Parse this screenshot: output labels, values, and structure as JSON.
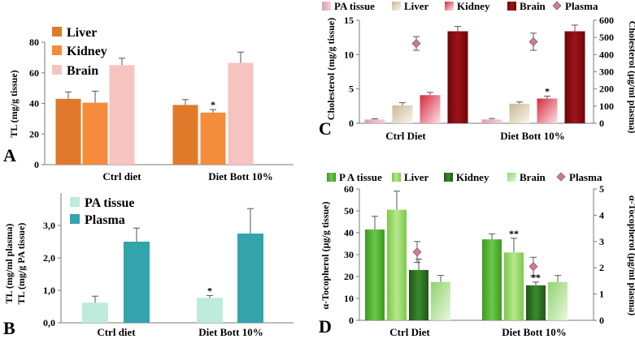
{
  "colors": {
    "liver_A": "#e07a2a",
    "kidney_A": "#f48c3c",
    "brain_A": "#f7c3c0",
    "pa_B": "#bdebdc",
    "plasma_B": "#33a3ac",
    "pa_C": "#e7b4bc",
    "liver_C": "#efe2c8",
    "kidney_C": "#e8576d",
    "brain_C": "#8a0d12",
    "plasma_C": "#c98088",
    "pa_D": "#52b231",
    "liver_D": "#8fd35a",
    "kidney_D": "#2d6d22",
    "brain_D": "#a6e08a",
    "plasma_D": "#c98088"
  },
  "chart_data": [
    {
      "panel": "A",
      "type": "bar",
      "categories": [
        "Ctrl diet",
        "Diet Bott 10%"
      ],
      "series": [
        {
          "name": "Liver",
          "values": [
            43,
            39
          ],
          "errors": [
            4.5,
            3.5
          ]
        },
        {
          "name": "Kidney",
          "values": [
            40.5,
            34
          ],
          "errors": [
            7.5,
            2
          ]
        },
        {
          "name": "Brain",
          "values": [
            65,
            66.5
          ],
          "errors": [
            4.5,
            7
          ]
        }
      ],
      "ylabel": "TL (mg/g tissue)",
      "ylim": [
        0,
        80
      ],
      "yticks": [
        "0",
        "20",
        "40",
        "60",
        "80"
      ],
      "significance": [
        {
          "category": 1,
          "series": 1,
          "label": "*"
        }
      ]
    },
    {
      "panel": "B",
      "type": "bar",
      "categories": [
        "Ctrl diet",
        "Diet Bott 10%"
      ],
      "series": [
        {
          "name": "PA tissue",
          "values": [
            0.62,
            0.77
          ],
          "errors": [
            0.2,
            0.07
          ]
        },
        {
          "name": "Plasma",
          "values": [
            2.5,
            2.75
          ],
          "errors": [
            0.42,
            0.77
          ]
        }
      ],
      "ylabel_lines": [
        "TL (mg/ml plasma)",
        "TL (mg/g  PA tissue)"
      ],
      "ylim": [
        0,
        4
      ],
      "yticks": [
        "0,0",
        "1,0",
        "2,0",
        "3,0"
      ],
      "significance": [
        {
          "category": 1,
          "series": 0,
          "label": "*"
        }
      ]
    },
    {
      "panel": "C",
      "type": "bar",
      "categories": [
        "Ctrl Diet",
        "Diet Bott 10%"
      ],
      "series": [
        {
          "name": "PA tissue",
          "values": [
            0.55,
            0.55
          ],
          "errors": [
            0.1,
            0.15
          ]
        },
        {
          "name": "Liver",
          "values": [
            2.6,
            2.85
          ],
          "errors": [
            0.4,
            0.25
          ]
        },
        {
          "name": "Kidney",
          "values": [
            4.1,
            3.6
          ],
          "errors": [
            0.4,
            0.35
          ]
        },
        {
          "name": "Brain",
          "values": [
            13.4,
            13.4
          ],
          "errors": [
            0.7,
            0.9
          ]
        }
      ],
      "secondary_series": {
        "name": "Plasma",
        "type": "scatter",
        "values": [
          465,
          475
        ],
        "errors": [
          40,
          50
        ]
      },
      "ylabel": "Cholesterol (mg/g tissue)",
      "ylim": [
        0,
        15
      ],
      "yticks": [
        "0",
        "5",
        "10",
        "15"
      ],
      "y2label": "Cholesterol (µg/ml plasma)",
      "y2lim": [
        0,
        600
      ],
      "y2ticks": [
        "0",
        "100",
        "200",
        "300",
        "400",
        "500",
        "600"
      ],
      "significance": [
        {
          "category": 1,
          "series": 2,
          "label": "*"
        }
      ]
    },
    {
      "panel": "D",
      "type": "bar",
      "categories": [
        "Ctrl Diet",
        "Diet Bott 10%"
      ],
      "series": [
        {
          "name": "P A tissue",
          "values": [
            41.5,
            37
          ],
          "errors": [
            6,
            2.5
          ]
        },
        {
          "name": "Liver",
          "values": [
            50.5,
            31
          ],
          "errors": [
            8.5,
            6.5
          ]
        },
        {
          "name": "Kidney",
          "values": [
            23,
            16
          ],
          "errors": [
            5,
            1.5
          ]
        },
        {
          "name": "Brain",
          "values": [
            17.5,
            17.5
          ],
          "errors": [
            3,
            3
          ]
        }
      ],
      "secondary_series": {
        "name": "Plasma",
        "type": "scatter",
        "values": [
          2.6,
          2.05
        ],
        "errors": [
          0.4,
          0.35
        ]
      },
      "ylabel": "α-Tocopherol (µg/g tissue)",
      "ylim": [
        0,
        60
      ],
      "yticks": [
        "0",
        "10",
        "20",
        "30",
        "40",
        "50",
        "60"
      ],
      "y2label": "α-Tocopherol (µg/ml plasma)",
      "y2lim": [
        0,
        5
      ],
      "y2ticks": [
        "0",
        "1",
        "2",
        "3",
        "4",
        "5"
      ],
      "significance": [
        {
          "category": 1,
          "series": 1,
          "label": "**"
        },
        {
          "category": 1,
          "series": 2,
          "label": "**"
        }
      ]
    }
  ]
}
